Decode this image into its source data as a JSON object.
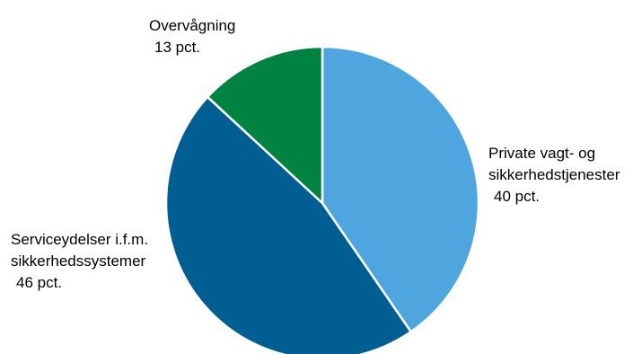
{
  "chart_data": {
    "type": "pie",
    "slices": [
      {
        "label_lines": [
          "Private vagt- og",
          "sikkerhedstjenester"
        ],
        "value_label": "40 pct.",
        "value": 40,
        "color": "#4fa5dd"
      },
      {
        "label_lines": [
          "Serviceydelser i.f.m.",
          "sikkerhedssystemer"
        ],
        "value_label": "46 pct.",
        "value": 46,
        "color": "#005e92"
      },
      {
        "label_lines": [
          "Overvågning"
        ],
        "value_label": "13 pct.",
        "value": 13,
        "color": "#008240"
      }
    ],
    "start_angle_deg": 0,
    "direction": "clockwise",
    "slice_border_color": "#ffffff"
  }
}
